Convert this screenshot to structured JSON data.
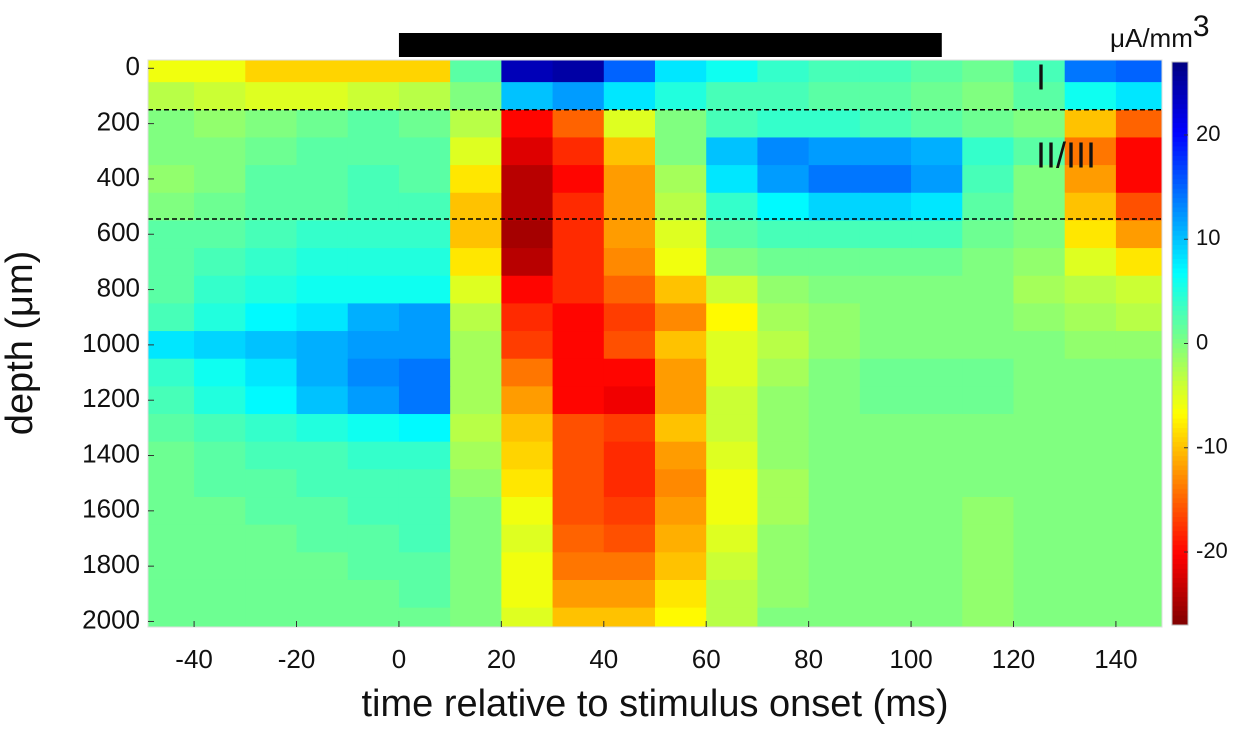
{
  "chart_data": {
    "type": "heatmap",
    "xlabel": "time relative to stimulus onset (ms)",
    "ylabel": "depth (μm)",
    "colorbar_label": "μA/mm",
    "colorbar_label_sup": "3",
    "colormap": "jet",
    "colormap_reversed": true,
    "clim": [
      -27,
      27
    ],
    "cticks": [
      20,
      10,
      0,
      -10,
      -20
    ],
    "xlim": [
      -49,
      149
    ],
    "ylim": [
      -30,
      2020
    ],
    "y_reversed": true,
    "xticks": [
      -40,
      -20,
      0,
      20,
      40,
      60,
      80,
      100,
      120,
      140
    ],
    "yticks": [
      0,
      200,
      400,
      600,
      800,
      1000,
      1200,
      1400,
      1600,
      1800,
      2000
    ],
    "stimulus_bar": [
      0,
      106
    ],
    "layer_boundaries": [
      150,
      545
    ],
    "layer_labels": [
      "I",
      "II/III"
    ],
    "x_edges": [
      -50,
      -40,
      -30,
      -20,
      -10,
      0,
      10,
      20,
      30,
      40,
      50,
      60,
      70,
      80,
      90,
      100,
      110,
      120,
      130,
      140,
      150
    ],
    "y_edges": [
      -50,
      50,
      150,
      250,
      350,
      450,
      550,
      650,
      750,
      850,
      950,
      1050,
      1150,
      1250,
      1350,
      1450,
      1550,
      1650,
      1750,
      1850,
      1950,
      2050
    ],
    "z": [
      [
        -6,
        -6,
        -9,
        -9,
        -9,
        -9,
        2,
        24,
        25,
        15,
        8,
        6,
        4,
        3,
        3,
        2,
        1,
        3,
        14,
        15
      ],
      [
        -3,
        -4,
        -5,
        -5,
        -4,
        -3,
        0,
        10,
        12,
        8,
        5,
        3,
        3,
        2,
        2,
        1,
        0,
        2,
        6,
        8
      ],
      [
        0,
        -1,
        0,
        1,
        2,
        1,
        -3,
        -20,
        -15,
        -5,
        0,
        3,
        4,
        4,
        3,
        2,
        1,
        0,
        -10,
        -15
      ],
      [
        0,
        0,
        1,
        2,
        2,
        2,
        -5,
        -22,
        -18,
        -10,
        0,
        10,
        13,
        12,
        12,
        11,
        4,
        2,
        -14,
        -20
      ],
      [
        -1,
        0,
        2,
        2,
        3,
        2,
        -8,
        -24,
        -20,
        -12,
        -2,
        8,
        12,
        14,
        14,
        12,
        3,
        0,
        -12,
        -20
      ],
      [
        0,
        1,
        2,
        2,
        3,
        3,
        -10,
        -24,
        -18,
        -12,
        -3,
        4,
        7,
        9,
        9,
        8,
        2,
        0,
        -10,
        -16
      ],
      [
        2,
        2,
        3,
        4,
        4,
        4,
        -10,
        -25,
        -18,
        -12,
        -5,
        2,
        3,
        3,
        3,
        3,
        1,
        0,
        -8,
        -12
      ],
      [
        2,
        3,
        4,
        5,
        5,
        5,
        -8,
        -24,
        -18,
        -13,
        -6,
        0,
        1,
        1,
        1,
        1,
        0,
        -1,
        -5,
        -8
      ],
      [
        2,
        4,
        5,
        6,
        6,
        6,
        -5,
        -20,
        -18,
        -15,
        -10,
        -4,
        -1,
        0,
        0,
        0,
        0,
        -2,
        -3,
        -4
      ],
      [
        3,
        5,
        7,
        8,
        11,
        12,
        -3,
        -18,
        -20,
        -17,
        -13,
        -7,
        -2,
        -1,
        0,
        0,
        0,
        -1,
        -2,
        -3
      ],
      [
        8,
        9,
        10,
        11,
        12,
        12,
        -2,
        -17,
        -20,
        -16,
        -10,
        -5,
        -3,
        -1,
        0,
        0,
        0,
        0,
        -1,
        -1
      ],
      [
        4,
        6,
        8,
        11,
        13,
        14,
        -2,
        -14,
        -20,
        -20,
        -12,
        -5,
        -2,
        0,
        1,
        1,
        1,
        0,
        0,
        0
      ],
      [
        3,
        5,
        7,
        10,
        12,
        14,
        -2,
        -12,
        -20,
        -21,
        -12,
        -4,
        -1,
        0,
        1,
        1,
        1,
        0,
        0,
        0
      ],
      [
        2,
        3,
        4,
        5,
        6,
        7,
        -3,
        -10,
        -16,
        -17,
        -10,
        -4,
        -1,
        0,
        0,
        0,
        0,
        0,
        0,
        0
      ],
      [
        1,
        2,
        3,
        3,
        4,
        4,
        -2,
        -9,
        -16,
        -18,
        -12,
        -5,
        -1,
        0,
        0,
        0,
        0,
        0,
        0,
        0
      ],
      [
        1,
        2,
        2,
        3,
        3,
        3,
        -1,
        -8,
        -16,
        -18,
        -13,
        -6,
        -2,
        0,
        0,
        0,
        0,
        0,
        0,
        0
      ],
      [
        1,
        1,
        2,
        2,
        3,
        3,
        0,
        -6,
        -16,
        -17,
        -12,
        -6,
        -2,
        0,
        0,
        0,
        -1,
        0,
        0,
        0
      ],
      [
        1,
        1,
        1,
        2,
        2,
        3,
        0,
        -5,
        -15,
        -16,
        -11,
        -5,
        -1,
        0,
        0,
        0,
        -1,
        0,
        0,
        0
      ],
      [
        1,
        1,
        1,
        1,
        2,
        2,
        0,
        -6,
        -14,
        -14,
        -10,
        -4,
        -1,
        0,
        0,
        0,
        -1,
        0,
        0,
        0
      ],
      [
        1,
        1,
        1,
        1,
        1,
        2,
        0,
        -6,
        -12,
        -12,
        -8,
        -3,
        -1,
        0,
        0,
        0,
        -1,
        0,
        0,
        0
      ],
      [
        1,
        1,
        1,
        1,
        1,
        1,
        0,
        -5,
        -10,
        -10,
        -7,
        -3,
        0,
        0,
        0,
        0,
        -1,
        0,
        0,
        0
      ]
    ]
  }
}
